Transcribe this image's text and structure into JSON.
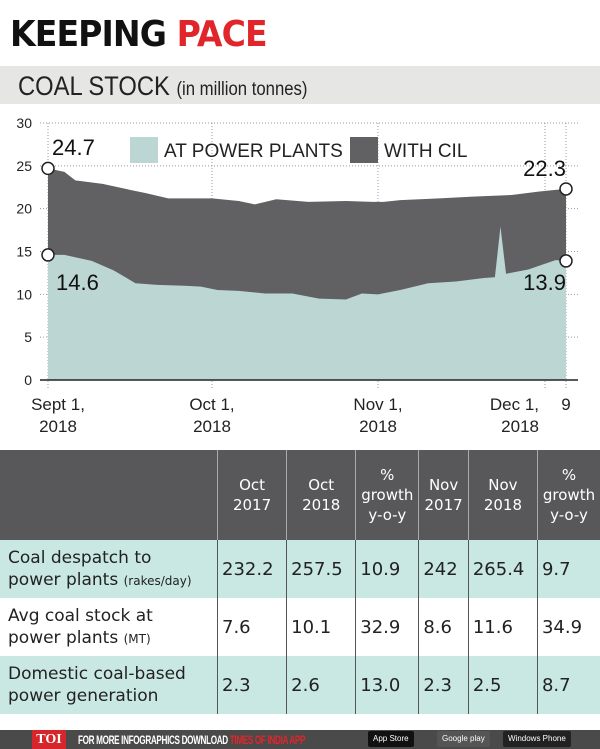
{
  "header": {
    "title_part1": "KEEPING",
    "title_part2": "PACE",
    "subtitle": "COAL STOCK",
    "subtitle_unit": "(in million tonnes)"
  },
  "chart_data": {
    "type": "area",
    "stacked": true,
    "ylim": [
      0,
      30
    ],
    "yticks": [
      0,
      5,
      10,
      15,
      20,
      25,
      30
    ],
    "xlim": [
      "2018-09-01",
      "2018-12-09"
    ],
    "xticks": [
      {
        "date": "2018-09-01",
        "line1": "Sept 1,",
        "line2": "2018"
      },
      {
        "date": "2018-10-01",
        "line1": "Oct 1,",
        "line2": "2018"
      },
      {
        "date": "2018-11-01",
        "line1": "Nov 1,",
        "line2": "2018"
      },
      {
        "date": "2018-12-01",
        "line1": "Dec 1,",
        "line2": "2018"
      },
      {
        "date": "2018-12-09",
        "line1": "9",
        "line2": ""
      }
    ],
    "grid": true,
    "legend_placement": "top",
    "series": [
      {
        "name": "AT POWER PLANTS",
        "color": "#bcd6d3",
        "x": [
          "2018-09-01",
          "2018-09-04",
          "2018-09-09",
          "2018-09-13",
          "2018-09-17",
          "2018-09-21",
          "2018-09-26",
          "2018-09-29",
          "2018-10-02",
          "2018-10-06",
          "2018-10-11",
          "2018-10-16",
          "2018-10-21",
          "2018-10-26",
          "2018-10-29",
          "2018-11-01",
          "2018-11-05",
          "2018-11-10",
          "2018-11-15",
          "2018-11-20",
          "2018-11-22",
          "2018-11-23",
          "2018-11-24",
          "2018-11-28",
          "2018-12-05",
          "2018-12-09"
        ],
        "values": [
          14.6,
          14.6,
          13.9,
          12.8,
          11.3,
          11.1,
          11.0,
          10.9,
          10.5,
          10.4,
          10.1,
          10.1,
          9.5,
          9.4,
          10.1,
          10.0,
          10.5,
          11.3,
          11.5,
          11.9,
          12.0,
          17.9,
          12.4,
          12.9,
          14.0,
          13.9
        ]
      },
      {
        "name": "WITH CIL",
        "color": "#616164",
        "total_x": [
          "2018-09-01",
          "2018-09-04",
          "2018-09-06",
          "2018-09-11",
          "2018-09-16",
          "2018-09-19",
          "2018-09-23",
          "2018-10-01",
          "2018-10-06",
          "2018-10-09",
          "2018-10-13",
          "2018-10-19",
          "2018-10-26",
          "2018-10-31",
          "2018-11-02",
          "2018-11-05",
          "2018-11-12",
          "2018-11-18",
          "2018-11-25",
          "2018-11-30",
          "2018-12-05",
          "2018-12-09"
        ],
        "total_values": [
          24.7,
          24.3,
          23.3,
          22.9,
          22.2,
          21.8,
          21.2,
          21.2,
          20.9,
          20.5,
          21.1,
          20.8,
          20.9,
          20.8,
          20.8,
          21.0,
          21.2,
          21.4,
          21.6,
          22.0,
          22.2,
          22.3
        ]
      }
    ],
    "annotations": [
      {
        "date": "2018-09-01",
        "value": 24.7,
        "label": "24.7"
      },
      {
        "date": "2018-09-01",
        "value": 14.6,
        "label": "14.6"
      },
      {
        "date": "2018-12-09",
        "value": 22.3,
        "label": "22.3"
      },
      {
        "date": "2018-12-09",
        "value": 13.9,
        "label": "13.9"
      }
    ]
  },
  "table": {
    "columns": [
      [
        "Oct",
        "2017"
      ],
      [
        "Oct",
        "2018"
      ],
      [
        "%",
        "growth",
        "y-o-y"
      ],
      [
        "Nov",
        "2017"
      ],
      [
        "Nov",
        "2018"
      ],
      [
        "%",
        "growth",
        "y-o-y"
      ]
    ],
    "rows": [
      {
        "label1": "Coal despatch to",
        "label2": "power plants",
        "unit": "(rakes/day)",
        "values": [
          "232.2",
          "257.5",
          "10.9",
          "242",
          "265.4",
          "9.7"
        ]
      },
      {
        "label1": "Avg coal stock at",
        "label2": "power plants",
        "unit": "(MT)",
        "values": [
          "7.6",
          "10.1",
          "32.9",
          "8.6",
          "11.6",
          "34.9"
        ]
      },
      {
        "label1": "Domestic coal-based",
        "label2": "power generation",
        "unit": "",
        "values": [
          "2.3",
          "2.6",
          "13.0",
          "2.3",
          "2.5",
          "8.7"
        ]
      }
    ]
  },
  "footer": {
    "logo": "TOI",
    "message": "FOR MORE  INFOGRAPHICS DOWNLOAD",
    "message_red": "TIMES OF INDIA  APP",
    "badges": [
      "App Store",
      "Google play",
      "Windows Phone"
    ]
  }
}
